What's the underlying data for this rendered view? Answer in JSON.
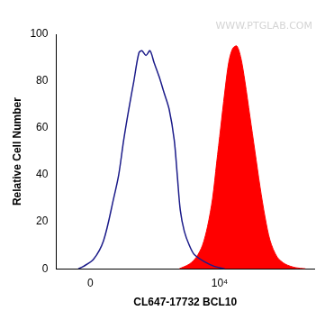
{
  "chart_data": {
    "type": "line",
    "x_label": "CL647-17732 BCL10",
    "y_label": "Relative Cell Number",
    "annotations": [
      "WWW.PTGLAB.COM"
    ],
    "xlim": [
      -340,
      262144
    ],
    "xticks": [
      0,
      {
        "value": 10000,
        "label": "10⁴"
      }
    ],
    "ylim": [
      0,
      100
    ],
    "yticks": [
      0,
      20,
      40,
      60,
      80,
      100
    ],
    "grid": false,
    "series": [
      {
        "type": "line",
        "color": "#1c1c8a",
        "x": [
          -99,
          -57,
          24,
          108,
          205,
          262,
          327,
          402,
          490,
          592,
          662,
          766,
          886,
          1022,
          1222,
          1458,
          1739,
          2073,
          2305,
          2560,
          2944,
          3505,
          4174,
          5920,
          8390,
          11890
        ],
        "values": [
          0,
          1,
          4,
          12,
          30,
          40,
          55,
          68,
          80,
          92,
          93,
          91,
          93,
          88,
          82,
          75,
          68,
          55,
          40,
          25,
          16,
          10,
          6,
          3,
          1,
          0
        ]
      },
      {
        "type": "area",
        "color": "#ff0000",
        "x": [
          2470,
          3505,
          4478,
          5520,
          6574,
          7827,
          8998,
          10345,
          11890,
          13674,
          15721,
          18078,
          20783,
          23897,
          28451,
          33868,
          40319,
          48001,
          57137,
          72938,
          96400,
          136620,
          193660
        ],
        "values": [
          0,
          2,
          5,
          10,
          18,
          30,
          45,
          60,
          75,
          88,
          94,
          95,
          90,
          80,
          65,
          50,
          35,
          22,
          12,
          5,
          2,
          0.5,
          0
        ]
      }
    ]
  }
}
